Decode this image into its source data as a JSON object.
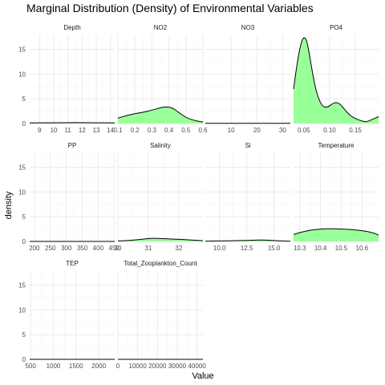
{
  "chart_data": {
    "type": "area",
    "title": "Marginal Distribution (Density) of Environmental Variables",
    "xlabel": "Value",
    "ylabel": "density",
    "fill_color": "#99ff99",
    "grid": true,
    "ylim": [
      0,
      18
    ],
    "yticks": [
      0,
      5,
      10,
      15
    ],
    "panels": [
      {
        "name": "Depth",
        "xlim": [
          8.3,
          14.3
        ],
        "xticks": [
          "9",
          "10",
          "11",
          "12",
          "13",
          "14"
        ],
        "xtick_values": [
          9,
          10,
          11,
          12,
          13,
          14
        ],
        "x": [
          8.3,
          10,
          11.5,
          13,
          14.3
        ],
        "y": [
          0.12,
          0.16,
          0.18,
          0.16,
          0.12
        ]
      },
      {
        "name": "NO2",
        "xlim": [
          0.1,
          0.6
        ],
        "xticks": [
          "0.1",
          "0.2",
          "0.3",
          "0.4",
          "0.5",
          "0.6"
        ],
        "xtick_values": [
          0.1,
          0.2,
          0.3,
          0.4,
          0.5,
          0.6
        ],
        "x": [
          0.1,
          0.15,
          0.2,
          0.25,
          0.3,
          0.35,
          0.38,
          0.42,
          0.46,
          0.5,
          0.55,
          0.6
        ],
        "y": [
          1.1,
          1.6,
          2.0,
          2.3,
          2.7,
          3.2,
          3.4,
          3.2,
          2.2,
          1.2,
          0.6,
          0.3
        ]
      },
      {
        "name": "NO3",
        "xlim": [
          0,
          33
        ],
        "xticks": [
          "10",
          "20",
          "30"
        ],
        "xtick_values": [
          10,
          20,
          30
        ],
        "x": [
          0,
          10,
          20,
          33
        ],
        "y": [
          0.05,
          0.05,
          0.05,
          0.05
        ]
      },
      {
        "name": "PO4",
        "xlim": [
          0.03,
          0.195
        ],
        "xticks": [
          "0.05",
          "0.10",
          "0.15"
        ],
        "xtick_values": [
          0.05,
          0.1,
          0.15
        ],
        "x": [
          0.03,
          0.038,
          0.045,
          0.05,
          0.055,
          0.06,
          0.067,
          0.075,
          0.085,
          0.095,
          0.105,
          0.112,
          0.12,
          0.13,
          0.14,
          0.15,
          0.16,
          0.17,
          0.18,
          0.195
        ],
        "y": [
          7,
          13,
          16.5,
          17.5,
          17,
          14.5,
          10,
          6,
          3.5,
          3.2,
          4,
          4.3,
          4,
          2.7,
          1.6,
          1.0,
          0.6,
          0.3,
          0.7,
          1.4
        ]
      },
      {
        "name": "PP",
        "xlim": [
          185,
          452
        ],
        "xticks": [
          "200",
          "250",
          "300",
          "350",
          "400",
          "450"
        ],
        "xtick_values": [
          200,
          250,
          300,
          350,
          400,
          450
        ],
        "x": [
          185,
          300,
          452
        ],
        "y": [
          0.01,
          0.01,
          0.01
        ]
      },
      {
        "name": "Salinity",
        "xlim": [
          30,
          32.8
        ],
        "xticks": [
          "30",
          "31",
          "32"
        ],
        "xtick_values": [
          30,
          31,
          32
        ],
        "x": [
          30,
          30.4,
          30.8,
          31.1,
          31.4,
          31.7,
          32,
          32.4,
          32.8
        ],
        "y": [
          0.1,
          0.2,
          0.45,
          0.65,
          0.6,
          0.5,
          0.45,
          0.3,
          0.15
        ]
      },
      {
        "name": "Si",
        "xlim": [
          8.7,
          16.5
        ],
        "xticks": [
          "10.0",
          "12.5",
          "15.0"
        ],
        "xtick_values": [
          10,
          12.5,
          15
        ],
        "x": [
          8.7,
          10,
          11.5,
          12.5,
          13.5,
          14.5,
          15.5,
          16.5
        ],
        "y": [
          0.05,
          0.1,
          0.15,
          0.2,
          0.3,
          0.25,
          0.12,
          0.05
        ]
      },
      {
        "name": "Temperature",
        "xlim": [
          10.27,
          10.68
        ],
        "xticks": [
          "10.3",
          "10.4",
          "10.5",
          "10.6"
        ],
        "xtick_values": [
          10.3,
          10.4,
          10.5,
          10.6
        ],
        "x": [
          10.27,
          10.3,
          10.35,
          10.4,
          10.45,
          10.5,
          10.55,
          10.6,
          10.65,
          10.68
        ],
        "y": [
          1.4,
          1.8,
          2.3,
          2.5,
          2.6,
          2.5,
          2.4,
          2.2,
          1.8,
          1.3
        ]
      },
      {
        "name": "TEP",
        "xlim": [
          480,
          2350
        ],
        "xticks": [
          "500",
          "1000",
          "1500",
          "2000"
        ],
        "xtick_values": [
          500,
          1000,
          1500,
          2000
        ],
        "x": [
          480,
          1400,
          2350
        ],
        "y": [
          0.001,
          0.001,
          0.001
        ]
      },
      {
        "name": "Total_Zooplankton_Count",
        "xlim": [
          0,
          43000
        ],
        "xticks": [
          "0",
          "10000",
          "20000",
          "30000",
          "40000"
        ],
        "xtick_values": [
          0,
          10000,
          20000,
          30000,
          40000
        ],
        "x": [
          0,
          20000,
          43000
        ],
        "y": [
          0.0001,
          0.0001,
          0.0001
        ]
      }
    ]
  }
}
